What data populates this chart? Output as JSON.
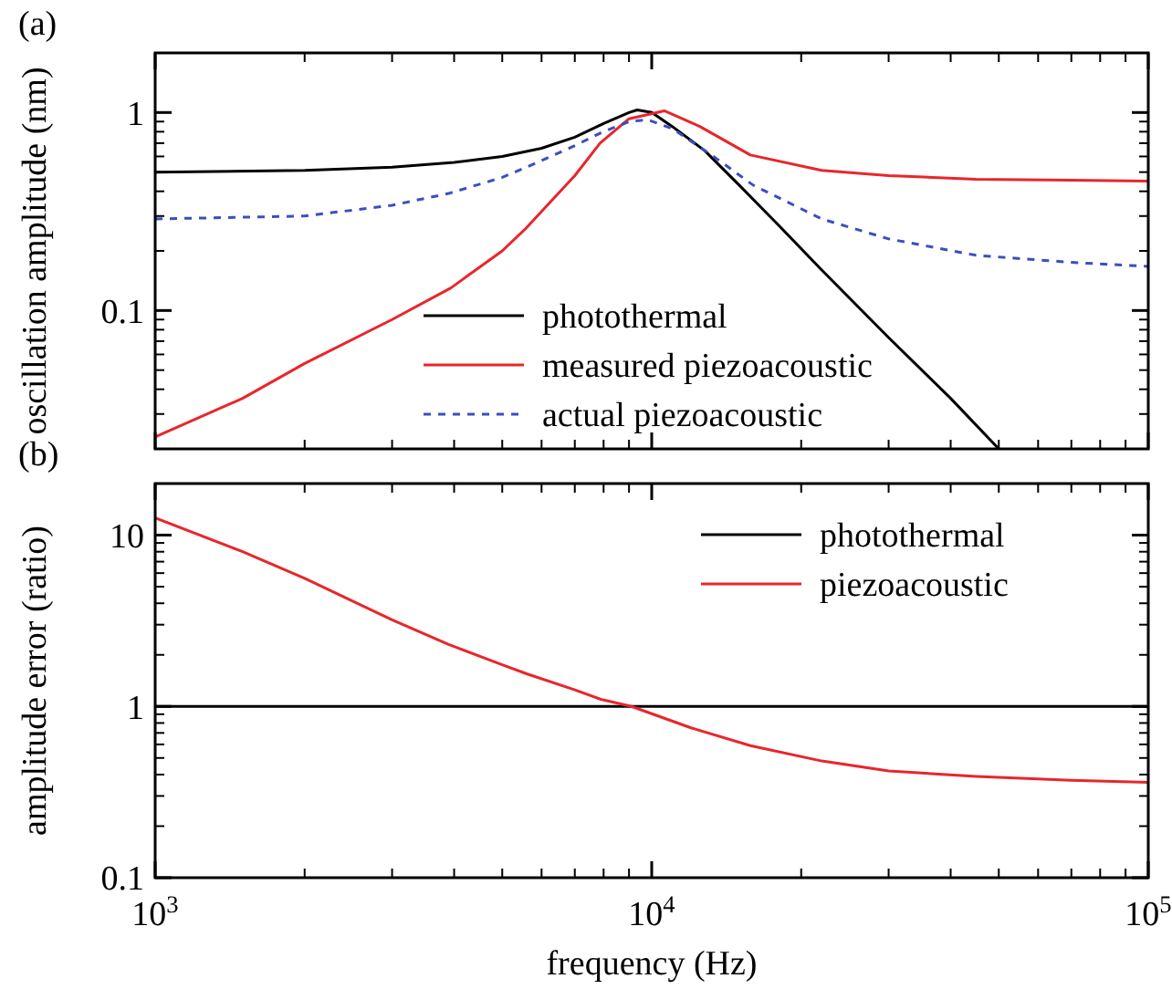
{
  "chart_data": [
    {
      "type": "line",
      "annotations": [
        "(a)"
      ],
      "ylabel": "oscillation amplitude (nm)",
      "log": "xy",
      "xlim": [
        1000,
        100000
      ],
      "ylim": [
        0.02,
        2
      ],
      "xticks": [
        1000,
        10000,
        100000
      ],
      "yticks": [
        0.1,
        1
      ],
      "tick_labels": "y",
      "legend": "bottom",
      "grid": false,
      "series": [
        {
          "name": "photothermal",
          "color": "#000000",
          "x": [
            1000,
            2000,
            3000,
            4000,
            5000,
            6000,
            7000,
            8000,
            9000,
            9350,
            10000,
            11000,
            12800,
            15000,
            18000,
            22000,
            30000,
            40000,
            50000
          ],
          "values": [
            0.5,
            0.51,
            0.53,
            0.56,
            0.6,
            0.66,
            0.75,
            0.88,
            1.0,
            1.03,
            1.0,
            0.85,
            0.64,
            0.43,
            0.27,
            0.16,
            0.073,
            0.036,
            0.02
          ]
        },
        {
          "name": "measured piezoacoustic",
          "color": "#e8262b",
          "x": [
            1000,
            1500,
            2000,
            3000,
            3940,
            5000,
            5580,
            7000,
            7870,
            9000,
            10600,
            12500,
            15800,
            22000,
            30000,
            45000,
            70000,
            100000
          ],
          "values": [
            0.023,
            0.036,
            0.054,
            0.09,
            0.13,
            0.2,
            0.26,
            0.48,
            0.7,
            0.93,
            1.02,
            0.85,
            0.61,
            0.51,
            0.48,
            0.46,
            0.455,
            0.45
          ]
        },
        {
          "name": "actual piezoacoustic",
          "color": "#3a4fc0",
          "line_style": "dashed",
          "x": [
            1000,
            2000,
            3000,
            3900,
            5000,
            5600,
            7000,
            7900,
            9000,
            9800,
            11000,
            13200,
            16000,
            22000,
            30000,
            45000,
            70000,
            100000
          ],
          "values": [
            0.29,
            0.3,
            0.34,
            0.39,
            0.47,
            0.53,
            0.68,
            0.79,
            0.9,
            0.92,
            0.83,
            0.61,
            0.43,
            0.29,
            0.23,
            0.19,
            0.175,
            0.167
          ]
        }
      ]
    },
    {
      "type": "line",
      "annotations": [
        "(b)"
      ],
      "ylabel": "amplitude error (ratio)",
      "xlabel": "frequency (Hz)",
      "log": "xy",
      "xlim": [
        1000,
        100000
      ],
      "ylim": [
        0.1,
        20
      ],
      "xticks": [
        {
          "value": 1000,
          "label": "10$^{3}$"
        },
        {
          "value": 10000,
          "label": "10$^{4}$"
        },
        {
          "value": 100000,
          "label": "10$^{5}$"
        }
      ],
      "yticks": [
        0.1,
        1,
        10
      ],
      "legend": "top right",
      "grid": false,
      "series": [
        {
          "name": "photothermal",
          "color": "#000000",
          "x": [
            1000,
            100000
          ],
          "values": [
            1,
            1
          ]
        },
        {
          "name": "piezoacoustic",
          "color": "#e8262b",
          "x": [
            1000,
            1500,
            2000,
            3000,
            3900,
            5000,
            5600,
            7000,
            7900,
            9100,
            12000,
            15800,
            22000,
            30000,
            45000,
            70000,
            100000
          ],
          "values": [
            12.6,
            8.0,
            5.6,
            3.2,
            2.3,
            1.75,
            1.55,
            1.25,
            1.1,
            1.0,
            0.75,
            0.59,
            0.48,
            0.42,
            0.39,
            0.37,
            0.36
          ]
        }
      ]
    }
  ]
}
